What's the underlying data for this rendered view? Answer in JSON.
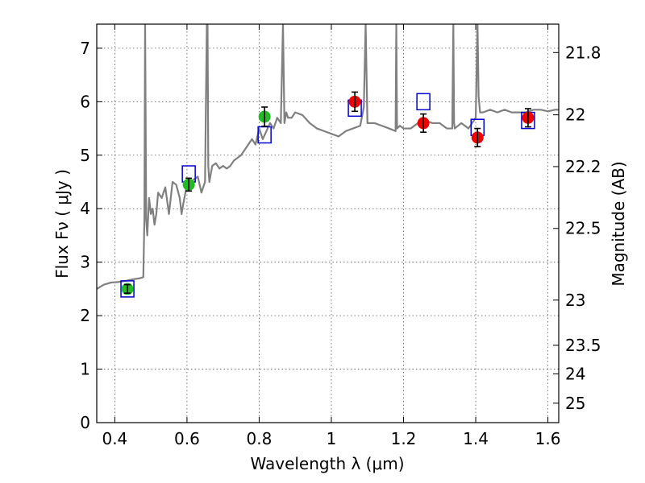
{
  "chart_data": {
    "type": "line",
    "xlabel": "Wavelength  λ (μm)",
    "ylabel": "Flux  Fν  ( μJy )",
    "y2label": "Magnitude (AB)",
    "xlim": [
      0.35,
      1.63
    ],
    "ylim": [
      0,
      7.45
    ],
    "xticks": [
      0.4,
      0.6,
      0.8,
      1.0,
      1.2,
      1.4,
      1.6
    ],
    "xtick_labels": [
      "0.4",
      "0.6",
      "0.8",
      "1",
      "1.2",
      "1.4",
      "1.6"
    ],
    "yticks": [
      0,
      1,
      2,
      3,
      4,
      5,
      6,
      7
    ],
    "ytick_labels": [
      "0",
      "1",
      "2",
      "3",
      "4",
      "5",
      "6",
      "7"
    ],
    "y2ticks": [
      21.8,
      22,
      22.2,
      22.5,
      23,
      23.5,
      24,
      25
    ],
    "y2tick_labels": [
      "21.8",
      "22",
      "22.2",
      "22.5",
      "23",
      "23.5",
      "24",
      "25"
    ],
    "grid": true,
    "colors": {
      "spectrum": "#808080",
      "model_boxes": "#0000cc",
      "optical_points": "#22bb22",
      "nir_points": "#ee0000",
      "error_bars": "#000000"
    },
    "spectrum": {
      "x": [
        0.35,
        0.37,
        0.39,
        0.41,
        0.43,
        0.45,
        0.47,
        0.479,
        0.482,
        0.484,
        0.487,
        0.49,
        0.495,
        0.5,
        0.505,
        0.51,
        0.515,
        0.52,
        0.53,
        0.54,
        0.55,
        0.56,
        0.57,
        0.58,
        0.585,
        0.59,
        0.6,
        0.61,
        0.62,
        0.63,
        0.64,
        0.65,
        0.655,
        0.657,
        0.659,
        0.662,
        0.67,
        0.68,
        0.69,
        0.7,
        0.71,
        0.72,
        0.73,
        0.74,
        0.75,
        0.76,
        0.77,
        0.78,
        0.79,
        0.8,
        0.81,
        0.82,
        0.83,
        0.84,
        0.85,
        0.86,
        0.866,
        0.87,
        0.875,
        0.88,
        0.89,
        0.9,
        0.92,
        0.94,
        0.96,
        0.98,
        1.0,
        1.02,
        1.04,
        1.06,
        1.08,
        1.09,
        1.095,
        1.1,
        1.12,
        1.14,
        1.16,
        1.178,
        1.18,
        1.182,
        1.19,
        1.2,
        1.22,
        1.24,
        1.26,
        1.28,
        1.3,
        1.32,
        1.335,
        1.338,
        1.34,
        1.342,
        1.36,
        1.38,
        1.4,
        1.405,
        1.408,
        1.412,
        1.42,
        1.44,
        1.46,
        1.48,
        1.5,
        1.52,
        1.54,
        1.56,
        1.58,
        1.6,
        1.62,
        1.63
      ],
      "y": [
        2.5,
        2.58,
        2.62,
        2.63,
        2.65,
        2.68,
        2.7,
        2.72,
        3.8,
        7.45,
        3.8,
        3.5,
        4.2,
        3.9,
        4.0,
        3.7,
        3.9,
        4.3,
        4.2,
        4.4,
        3.9,
        4.5,
        4.45,
        4.2,
        3.9,
        4.1,
        4.45,
        4.5,
        4.55,
        4.6,
        4.3,
        4.5,
        7.45,
        7.45,
        4.8,
        4.5,
        4.8,
        4.85,
        4.75,
        4.8,
        4.75,
        4.8,
        4.9,
        4.95,
        5.0,
        5.1,
        5.2,
        5.3,
        5.2,
        5.5,
        5.3,
        5.45,
        5.6,
        5.5,
        5.7,
        5.6,
        7.45,
        5.6,
        5.8,
        5.7,
        5.7,
        5.8,
        5.75,
        5.6,
        5.5,
        5.45,
        5.4,
        5.35,
        5.45,
        5.5,
        5.55,
        5.9,
        7.45,
        5.6,
        5.6,
        5.55,
        5.5,
        5.45,
        7.45,
        5.5,
        5.55,
        5.5,
        5.5,
        5.6,
        5.65,
        5.6,
        5.6,
        5.5,
        5.5,
        7.45,
        5.6,
        5.5,
        5.6,
        5.5,
        5.7,
        7.45,
        6.1,
        5.8,
        5.8,
        5.85,
        5.8,
        5.85,
        5.8,
        5.8,
        5.8,
        5.85,
        5.85,
        5.82,
        5.85,
        5.85
      ]
    },
    "series": [
      {
        "marker": "square",
        "x": [
          0.435,
          0.605,
          0.815,
          1.065,
          1.255,
          1.405,
          1.545
        ],
        "y": [
          2.5,
          4.65,
          5.38,
          5.88,
          6.0,
          5.52,
          5.65
        ]
      },
      {
        "marker": "circle",
        "x": [
          0.435,
          0.605,
          0.815
        ],
        "y": [
          2.5,
          4.45,
          5.72
        ],
        "yerr": [
          0.08,
          0.12,
          0.18
        ]
      },
      {
        "marker": "circle",
        "x": [
          1.065,
          1.255,
          1.405,
          1.545
        ],
        "y": [
          6.0,
          5.6,
          5.33,
          5.7
        ],
        "yerr": [
          0.18,
          0.17,
          0.17,
          0.17
        ]
      }
    ]
  }
}
